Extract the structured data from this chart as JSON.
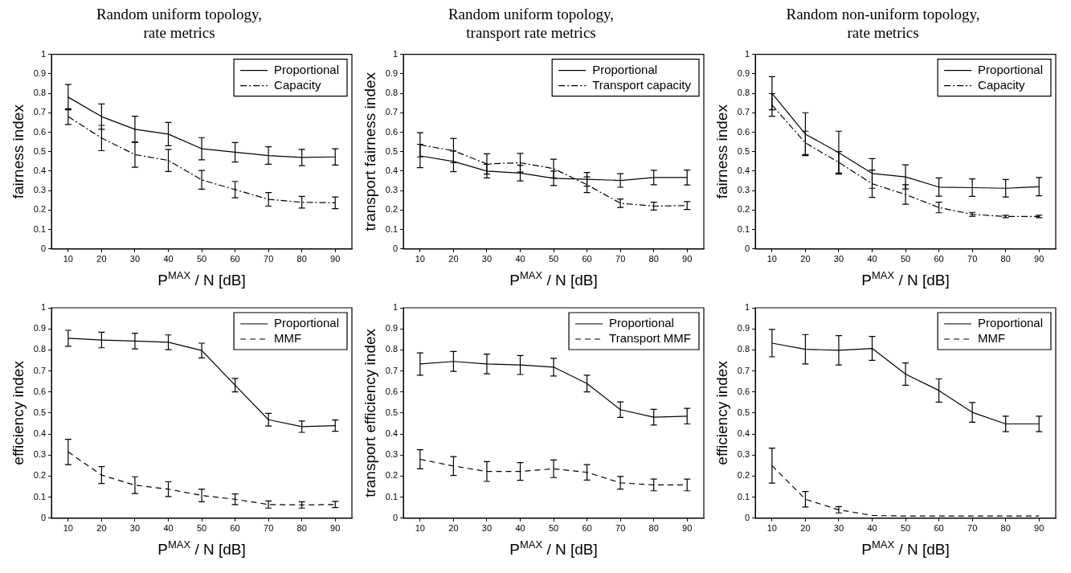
{
  "chart_data": [
    {
      "type": "line",
      "title": "Random uniform topology, rate metrics",
      "xlabel": "P$^{MAX}$ / N [dB]",
      "ylabel": "fairness index",
      "x": [
        10,
        20,
        30,
        40,
        50,
        60,
        70,
        80,
        90
      ],
      "xlim": [
        5,
        95
      ],
      "xticks": [
        10,
        20,
        30,
        40,
        50,
        60,
        70,
        80,
        90
      ],
      "ylim": [
        0,
        1
      ],
      "yticks": [
        0,
        0.1,
        0.2,
        0.3,
        0.4,
        0.5,
        0.6,
        0.7,
        0.8,
        0.9,
        1
      ],
      "grid": false,
      "legend": "top right",
      "marker": "none",
      "series": [
        {
          "name": "Proportional",
          "color": "#000000",
          "line_style": "solid",
          "values": [
            0.78,
            0.68,
            0.615,
            0.59,
            0.515,
            0.497,
            0.48,
            0.47,
            0.473
          ],
          "errors": [
            0.065,
            0.065,
            0.067,
            0.06,
            0.057,
            0.05,
            0.045,
            0.042,
            0.042
          ]
        },
        {
          "name": "Capacity",
          "color": "#000000",
          "line_style": "dashdot",
          "values": [
            0.68,
            0.57,
            0.485,
            0.455,
            0.355,
            0.305,
            0.255,
            0.24,
            0.237
          ],
          "errors": [
            0.04,
            0.065,
            0.065,
            0.057,
            0.048,
            0.042,
            0.035,
            0.03,
            0.03
          ]
        }
      ]
    },
    {
      "type": "line",
      "title": "Random uniform topology, transport rate metrics",
      "xlabel": "P$^{MAX}$ / N [dB]",
      "ylabel": "transport fairness index",
      "x": [
        10,
        20,
        30,
        40,
        50,
        60,
        70,
        80,
        90
      ],
      "xlim": [
        5,
        95
      ],
      "xticks": [
        10,
        20,
        30,
        40,
        50,
        60,
        70,
        80,
        90
      ],
      "ylim": [
        0,
        1
      ],
      "yticks": [
        0,
        0.1,
        0.2,
        0.3,
        0.4,
        0.5,
        0.6,
        0.7,
        0.8,
        0.9,
        1
      ],
      "grid": false,
      "legend": "top right",
      "marker": "none",
      "series": [
        {
          "name": "Proportional",
          "color": "#000000",
          "line_style": "solid",
          "values": [
            0.478,
            0.45,
            0.4,
            0.39,
            0.363,
            0.358,
            0.352,
            0.367,
            0.367
          ],
          "errors": [
            0.06,
            0.053,
            0.035,
            0.04,
            0.037,
            0.035,
            0.035,
            0.037,
            0.038
          ]
        },
        {
          "name": "Transport capacity",
          "color": "#000000",
          "line_style": "dashdot",
          "values": [
            0.535,
            0.505,
            0.437,
            0.443,
            0.413,
            0.33,
            0.235,
            0.22,
            0.223
          ],
          "errors": [
            0.062,
            0.062,
            0.052,
            0.048,
            0.048,
            0.04,
            0.022,
            0.02,
            0.02
          ]
        }
      ]
    },
    {
      "type": "line",
      "title": "Random non-uniform topology, rate metrics",
      "xlabel": "P$^{MAX}$ / N [dB]",
      "ylabel": "fairness index",
      "x": [
        10,
        20,
        30,
        40,
        50,
        60,
        70,
        80,
        90
      ],
      "xlim": [
        5,
        95
      ],
      "xticks": [
        10,
        20,
        30,
        40,
        50,
        60,
        70,
        80,
        90
      ],
      "ylim": [
        0,
        1
      ],
      "yticks": [
        0,
        0.1,
        0.2,
        0.3,
        0.4,
        0.5,
        0.6,
        0.7,
        0.8,
        0.9,
        1
      ],
      "grid": false,
      "legend": "top right",
      "marker": "none",
      "series": [
        {
          "name": "Proportional",
          "color": "#000000",
          "line_style": "solid",
          "values": [
            0.8,
            0.59,
            0.495,
            0.388,
            0.37,
            0.318,
            0.315,
            0.312,
            0.32
          ],
          "errors": [
            0.085,
            0.11,
            0.11,
            0.076,
            0.062,
            0.047,
            0.045,
            0.045,
            0.047
          ]
        },
        {
          "name": "Capacity",
          "color": "#000000",
          "line_style": "dashdot",
          "values": [
            0.74,
            0.545,
            0.445,
            0.335,
            0.28,
            0.213,
            0.178,
            0.167,
            0.167
          ],
          "errors": [
            0.058,
            0.06,
            0.055,
            0.07,
            0.05,
            0.027,
            0.01,
            0.006,
            0.006
          ]
        }
      ]
    },
    {
      "type": "line",
      "xlabel": "P$^{MAX}$ / N [dB]",
      "ylabel": "efficiency index",
      "x": [
        10,
        20,
        30,
        40,
        50,
        60,
        70,
        80,
        90
      ],
      "xlim": [
        5,
        95
      ],
      "xticks": [
        10,
        20,
        30,
        40,
        50,
        60,
        70,
        80,
        90
      ],
      "ylim": [
        0,
        1
      ],
      "yticks": [
        0,
        0.1,
        0.2,
        0.3,
        0.4,
        0.5,
        0.6,
        0.7,
        0.8,
        0.9,
        1
      ],
      "grid": false,
      "legend": "top right",
      "marker": "none",
      "series": [
        {
          "name": "Proportional",
          "color": "#000000",
          "line_style": "solid",
          "values": [
            0.855,
            0.847,
            0.842,
            0.836,
            0.797,
            0.632,
            0.468,
            0.435,
            0.44
          ],
          "errors": [
            0.038,
            0.037,
            0.037,
            0.035,
            0.035,
            0.032,
            0.03,
            0.027,
            0.027
          ]
        },
        {
          "name": "MMF",
          "color": "#000000",
          "line_style": "dashed",
          "values": [
            0.315,
            0.205,
            0.157,
            0.138,
            0.108,
            0.09,
            0.065,
            0.063,
            0.065
          ],
          "errors": [
            0.06,
            0.04,
            0.04,
            0.035,
            0.03,
            0.025,
            0.017,
            0.015,
            0.015
          ]
        }
      ]
    },
    {
      "type": "line",
      "xlabel": "P$^{MAX}$ / N [dB]",
      "ylabel": "transport efficiency index",
      "x": [
        10,
        20,
        30,
        40,
        50,
        60,
        70,
        80,
        90
      ],
      "xlim": [
        5,
        95
      ],
      "xticks": [
        10,
        20,
        30,
        40,
        50,
        60,
        70,
        80,
        90
      ],
      "ylim": [
        0,
        1
      ],
      "yticks": [
        0,
        0.1,
        0.2,
        0.3,
        0.4,
        0.5,
        0.6,
        0.7,
        0.8,
        0.9,
        1
      ],
      "grid": false,
      "legend": "top right",
      "marker": "none",
      "series": [
        {
          "name": "Proportional",
          "color": "#000000",
          "line_style": "solid",
          "values": [
            0.733,
            0.745,
            0.733,
            0.728,
            0.718,
            0.64,
            0.516,
            0.48,
            0.485
          ],
          "errors": [
            0.053,
            0.047,
            0.047,
            0.045,
            0.042,
            0.04,
            0.037,
            0.037,
            0.037
          ]
        },
        {
          "name": "Transport MMF",
          "color": "#000000",
          "line_style": "dashed",
          "values": [
            0.28,
            0.248,
            0.222,
            0.222,
            0.235,
            0.218,
            0.168,
            0.158,
            0.158
          ],
          "errors": [
            0.045,
            0.045,
            0.047,
            0.042,
            0.042,
            0.037,
            0.03,
            0.028,
            0.028
          ]
        }
      ]
    },
    {
      "type": "line",
      "xlabel": "P$^{MAX}$ / N [dB]",
      "ylabel": "efficiency index",
      "x": [
        10,
        20,
        30,
        40,
        50,
        60,
        70,
        80,
        90
      ],
      "xlim": [
        5,
        95
      ],
      "xticks": [
        10,
        20,
        30,
        40,
        50,
        60,
        70,
        80,
        90
      ],
      "ylim": [
        0,
        1
      ],
      "yticks": [
        0,
        0.1,
        0.2,
        0.3,
        0.4,
        0.5,
        0.6,
        0.7,
        0.8,
        0.9,
        1
      ],
      "grid": false,
      "legend": "top right",
      "marker": "none",
      "series": [
        {
          "name": "Proportional",
          "color": "#000000",
          "line_style": "solid",
          "values": [
            0.832,
            0.803,
            0.798,
            0.807,
            0.685,
            0.607,
            0.503,
            0.448,
            0.448
          ],
          "errors": [
            0.065,
            0.07,
            0.07,
            0.057,
            0.053,
            0.055,
            0.047,
            0.037,
            0.037
          ]
        },
        {
          "name": "MMF",
          "color": "#000000",
          "line_style": "dashed",
          "values": [
            0.25,
            0.09,
            0.04,
            0.013,
            0.01,
            0.01,
            0.01,
            0.01,
            0.01
          ],
          "errors": [
            0.083,
            0.037,
            0.015,
            null,
            null,
            null,
            null,
            null,
            null
          ]
        }
      ]
    }
  ]
}
